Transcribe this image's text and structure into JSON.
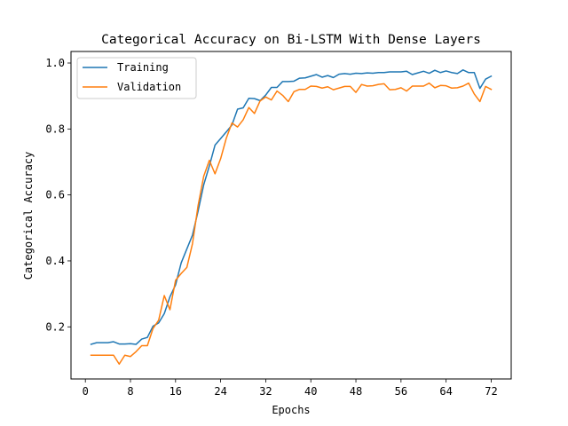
{
  "chart_data": {
    "type": "line",
    "title": "Categorical Accuracy on Bi-LSTM With Dense Layers",
    "xlabel": "Epochs",
    "ylabel": "Categorical Accuracy",
    "xlim": [
      -2.55,
      75.55
    ],
    "ylim": [
      0.042,
      1.035
    ],
    "xticks": [
      0,
      8,
      16,
      24,
      32,
      40,
      48,
      56,
      64,
      72
    ],
    "yticks": [
      0.2,
      0.4,
      0.6,
      0.8,
      1.0
    ],
    "xtick_labels": [
      "0",
      "8",
      "16",
      "24",
      "32",
      "40",
      "48",
      "56",
      "64",
      "72"
    ],
    "ytick_labels": [
      "0.2",
      "0.4",
      "0.6",
      "0.8",
      "1.0"
    ],
    "grid": false,
    "legend_position": "top-left",
    "x": [
      1,
      2,
      3,
      4,
      5,
      6,
      7,
      8,
      9,
      10,
      11,
      12,
      13,
      14,
      15,
      16,
      17,
      18,
      19,
      20,
      21,
      22,
      23,
      24,
      25,
      26,
      27,
      28,
      29,
      30,
      31,
      32,
      33,
      34,
      35,
      36,
      37,
      38,
      39,
      40,
      41,
      42,
      43,
      44,
      45,
      46,
      47,
      48,
      49,
      50,
      51,
      52,
      53,
      54,
      55,
      56,
      57,
      58,
      59,
      60,
      61,
      62,
      63,
      64,
      65,
      66,
      67,
      68,
      69,
      70,
      71,
      72
    ],
    "series": [
      {
        "name": "Training",
        "color": "#1f77b4",
        "values": [
          0.147,
          0.152,
          0.152,
          0.152,
          0.155,
          0.148,
          0.148,
          0.149,
          0.147,
          0.163,
          0.168,
          0.202,
          0.212,
          0.24,
          0.291,
          0.327,
          0.394,
          0.436,
          0.478,
          0.551,
          0.631,
          0.688,
          0.751,
          0.771,
          0.791,
          0.812,
          0.86,
          0.864,
          0.893,
          0.892,
          0.886,
          0.903,
          0.926,
          0.926,
          0.944,
          0.944,
          0.945,
          0.954,
          0.955,
          0.96,
          0.965,
          0.957,
          0.962,
          0.956,
          0.966,
          0.968,
          0.966,
          0.969,
          0.968,
          0.97,
          0.969,
          0.971,
          0.971,
          0.973,
          0.973,
          0.973,
          0.975,
          0.965,
          0.97,
          0.975,
          0.969,
          0.978,
          0.971,
          0.976,
          0.971,
          0.968,
          0.979,
          0.971,
          0.971,
          0.923,
          0.951,
          0.96
        ]
      },
      {
        "name": "Validation",
        "color": "#ff7f0e",
        "values": [
          0.114,
          0.114,
          0.114,
          0.114,
          0.114,
          0.087,
          0.114,
          0.11,
          0.125,
          0.143,
          0.143,
          0.195,
          0.22,
          0.295,
          0.252,
          0.341,
          0.362,
          0.38,
          0.452,
          0.568,
          0.657,
          0.705,
          0.664,
          0.71,
          0.772,
          0.818,
          0.806,
          0.828,
          0.865,
          0.847,
          0.885,
          0.897,
          0.888,
          0.915,
          0.902,
          0.883,
          0.913,
          0.92,
          0.92,
          0.93,
          0.929,
          0.924,
          0.928,
          0.919,
          0.924,
          0.929,
          0.929,
          0.911,
          0.935,
          0.93,
          0.931,
          0.935,
          0.937,
          0.919,
          0.92,
          0.925,
          0.915,
          0.93,
          0.93,
          0.93,
          0.939,
          0.925,
          0.932,
          0.931,
          0.924,
          0.925,
          0.93,
          0.939,
          0.906,
          0.883,
          0.929,
          0.92
        ]
      }
    ]
  }
}
